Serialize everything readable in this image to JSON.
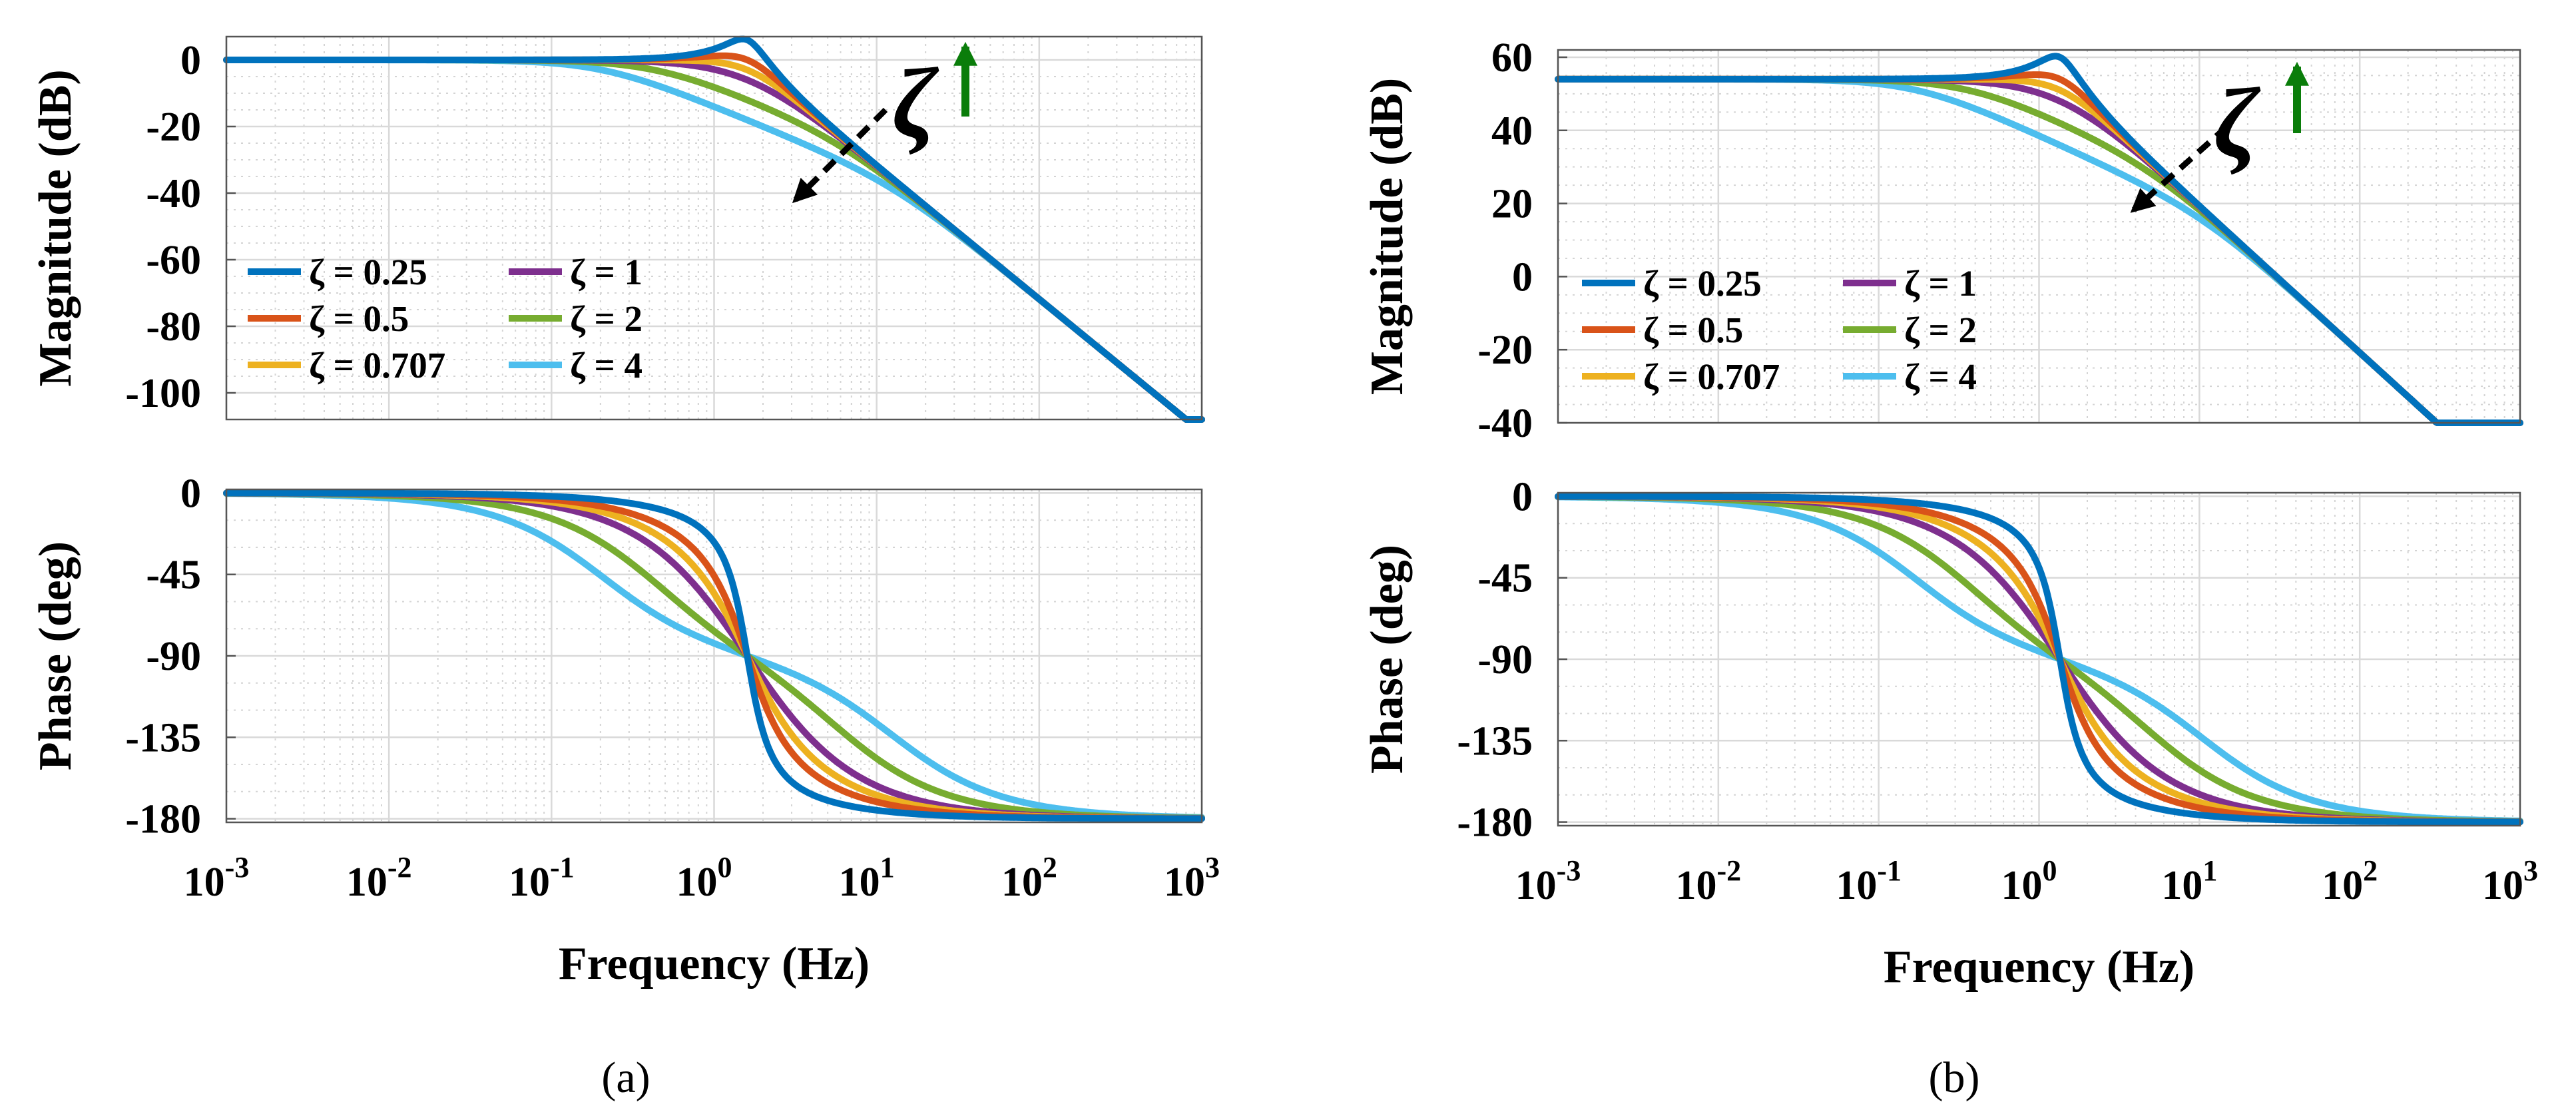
{
  "chart_data": [
    {
      "panel": "(a)",
      "type": "line",
      "subplots": [
        {
          "id": "magnitude",
          "ylabel": "Magnitude (dB)",
          "ylim": [
            -108,
            7
          ],
          "yticks": [
            {
              "v": 0,
              "t": "0"
            },
            {
              "v": -20,
              "t": "-20"
            },
            {
              "v": -40,
              "t": "-40"
            },
            {
              "v": -60,
              "t": "-60"
            },
            {
              "v": -80,
              "t": "-80"
            },
            {
              "v": -100,
              "t": "-100"
            }
          ]
        },
        {
          "id": "phase",
          "ylabel": "Phase (deg)",
          "ylim": [
            -182,
            2
          ],
          "yticks": [
            {
              "v": 0,
              "t": "0"
            },
            {
              "v": -45,
              "t": "-45"
            },
            {
              "v": -90,
              "t": "-90"
            },
            {
              "v": -135,
              "t": "-135"
            },
            {
              "v": -180,
              "t": "-180"
            }
          ]
        }
      ],
      "xlabel": "Frequency (Hz)",
      "xscale": "log",
      "xlim": [
        0.001,
        1000
      ],
      "xticks": [
        {
          "base": "10",
          "exp": "-3"
        },
        {
          "base": "10",
          "exp": "-2"
        },
        {
          "base": "10",
          "exp": "-1"
        },
        {
          "base": "10",
          "exp": "0"
        },
        {
          "base": "10",
          "exp": "1"
        },
        {
          "base": "10",
          "exp": "2"
        },
        {
          "base": "10",
          "exp": "3"
        }
      ],
      "system": {
        "natural_frequency_hz": 1.6,
        "dc_gain_db": 0
      },
      "series": [
        {
          "name": "ζ = 0.25",
          "zeta": 0.25,
          "color": "#0072BD"
        },
        {
          "name": "ζ = 0.5",
          "zeta": 0.5,
          "color": "#D95319"
        },
        {
          "name": "ζ = 0.707",
          "zeta": 0.707,
          "color": "#EDB120"
        },
        {
          "name": "ζ = 1",
          "zeta": 1,
          "color": "#7E2F8E"
        },
        {
          "name": "ζ = 2",
          "zeta": 2,
          "color": "#77AC30"
        },
        {
          "name": "ζ = 4",
          "zeta": 4,
          "color": "#4DBEEE"
        }
      ],
      "legend": {
        "location": "lower-left",
        "columns": 2
      },
      "annotation": {
        "symbol": "ζ",
        "meaning": "increasing damping ratio",
        "arrow_color": "#0a7d0a"
      }
    },
    {
      "panel": "(b)",
      "type": "line",
      "subplots": [
        {
          "id": "magnitude",
          "ylabel": "Magnitude (dB)",
          "ylim": [
            -40,
            62
          ],
          "yticks": [
            {
              "v": 60,
              "t": "60"
            },
            {
              "v": 40,
              "t": "40"
            },
            {
              "v": 20,
              "t": "20"
            },
            {
              "v": 0,
              "t": "0"
            },
            {
              "v": -20,
              "t": "-20"
            },
            {
              "v": -40,
              "t": "-40"
            }
          ]
        },
        {
          "id": "phase",
          "ylabel": "Phase (deg)",
          "ylim": [
            -182,
            2
          ],
          "yticks": [
            {
              "v": 0,
              "t": "0"
            },
            {
              "v": -45,
              "t": "-45"
            },
            {
              "v": -90,
              "t": "-90"
            },
            {
              "v": -135,
              "t": "-135"
            },
            {
              "v": -180,
              "t": "-180"
            }
          ]
        }
      ],
      "xlabel": "Frequency (Hz)",
      "xscale": "log",
      "xlim": [
        0.001,
        1000
      ],
      "xticks": [
        {
          "base": "10",
          "exp": "-3"
        },
        {
          "base": "10",
          "exp": "-2"
        },
        {
          "base": "10",
          "exp": "-1"
        },
        {
          "base": "10",
          "exp": "0"
        },
        {
          "base": "10",
          "exp": "1"
        },
        {
          "base": "10",
          "exp": "2"
        },
        {
          "base": "10",
          "exp": "3"
        }
      ],
      "system": {
        "natural_frequency_hz": 1.35,
        "dc_gain_db": 54
      },
      "series": [
        {
          "name": "ζ = 0.25",
          "zeta": 0.25,
          "color": "#0072BD"
        },
        {
          "name": "ζ = 0.5",
          "zeta": 0.5,
          "color": "#D95319"
        },
        {
          "name": "ζ = 0.707",
          "zeta": 0.707,
          "color": "#EDB120"
        },
        {
          "name": "ζ = 1",
          "zeta": 1,
          "color": "#7E2F8E"
        },
        {
          "name": "ζ = 2",
          "zeta": 2,
          "color": "#77AC30"
        },
        {
          "name": "ζ = 4",
          "zeta": 4,
          "color": "#4DBEEE"
        }
      ],
      "legend": {
        "location": "lower-left",
        "columns": 2
      },
      "annotation": {
        "symbol": "ζ",
        "meaning": "increasing damping ratio",
        "arrow_color": "#0a7d0a"
      }
    }
  ]
}
